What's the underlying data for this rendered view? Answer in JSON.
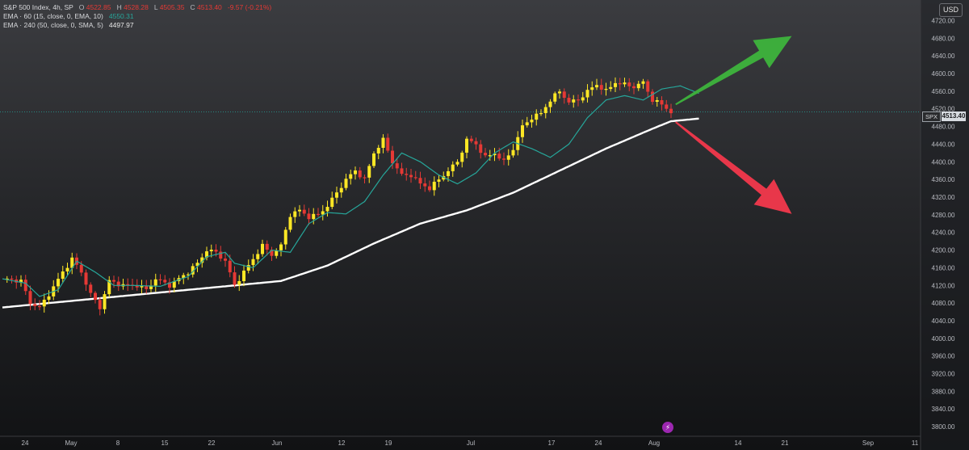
{
  "legend": {
    "title": "S&P 500 Index, 4h, SP",
    "ohlc": [
      {
        "k": "O",
        "v": "4522.85"
      },
      {
        "k": "H",
        "v": "4528.28"
      },
      {
        "k": "L",
        "v": "4505.35"
      },
      {
        "k": "C",
        "v": "4513.40"
      }
    ],
    "change": "-9.57 (-0.21%)",
    "ema1_label": "EMA · 60 (15, close, 0, EMA, 10)",
    "ema1_value": "4550.31",
    "ema2_label": "EMA · 240 (50, close, 0, SMA, 5)",
    "ema2_value": "4497.97"
  },
  "currency_button": "USD",
  "symbol_tag": "SPX",
  "last_price_label": "4513.40",
  "colors": {
    "bull": "#fde725",
    "bear": "#e53935",
    "ema_fast": "#26a69a",
    "ema_slow": "#ffffff",
    "arrow_up": "#3dad3c",
    "arrow_down": "#e8374a",
    "price_line": "#26a69a"
  },
  "icons": {
    "currency": "usd-button",
    "event": "lightning-icon"
  },
  "chart_data": {
    "type": "candlestick",
    "title": "S&P 500 Index, 4h, SP",
    "y_axis": {
      "ticks": [
        3800,
        3840,
        3880,
        3920,
        3960,
        4000,
        4040,
        4080,
        4120,
        4160,
        4200,
        4240,
        4280,
        4320,
        4360,
        4400,
        4440,
        4480,
        4520,
        4560,
        4600,
        4640,
        4680,
        4720
      ],
      "tick_labels": [
        "3800.00",
        "3840.00",
        "3880.00",
        "3920.00",
        "3960.00",
        "4000.00",
        "4040.00",
        "4080.00",
        "4120.00",
        "4160.00",
        "4200.00",
        "4240.00",
        "4280.00",
        "4320.00",
        "4360.00",
        "4400.00",
        "4440.00",
        "4480.00",
        "4520.00",
        "4560.00",
        "4600.00",
        "4640.00",
        "4680.00",
        "4720.00"
      ],
      "range": [
        3780,
        4752
      ]
    },
    "x_axis": {
      "labels": [
        "24",
        "May",
        "8",
        "15",
        "22",
        "Jun",
        "12",
        "19",
        "Jul",
        "17",
        "24",
        "Aug",
        "14",
        "21",
        "Sep",
        "11"
      ]
    },
    "last_price": 4513.4,
    "ema_fast_anchors": [
      [
        0,
        4135
      ],
      [
        5,
        4125
      ],
      [
        8,
        4095
      ],
      [
        12,
        4110
      ],
      [
        16,
        4175
      ],
      [
        20,
        4150
      ],
      [
        24,
        4120
      ],
      [
        28,
        4120
      ],
      [
        34,
        4118
      ],
      [
        40,
        4140
      ],
      [
        44,
        4185
      ],
      [
        48,
        4195
      ],
      [
        50,
        4170
      ],
      [
        54,
        4160
      ],
      [
        58,
        4200
      ],
      [
        62,
        4195
      ],
      [
        66,
        4260
      ],
      [
        70,
        4285
      ],
      [
        74,
        4282
      ],
      [
        78,
        4310
      ],
      [
        82,
        4370
      ],
      [
        86,
        4420
      ],
      [
        90,
        4400
      ],
      [
        94,
        4370
      ],
      [
        98,
        4350
      ],
      [
        102,
        4375
      ],
      [
        106,
        4420
      ],
      [
        110,
        4445
      ],
      [
        114,
        4430
      ],
      [
        118,
        4410
      ],
      [
        122,
        4440
      ],
      [
        126,
        4500
      ],
      [
        130,
        4540
      ],
      [
        134,
        4550
      ],
      [
        138,
        4540
      ],
      [
        142,
        4565
      ],
      [
        146,
        4572
      ],
      [
        150,
        4555
      ]
    ],
    "ema_slow_anchors": [
      [
        0,
        4070
      ],
      [
        20,
        4090
      ],
      [
        40,
        4110
      ],
      [
        60,
        4130
      ],
      [
        70,
        4165
      ],
      [
        80,
        4215
      ],
      [
        90,
        4260
      ],
      [
        100,
        4290
      ],
      [
        110,
        4330
      ],
      [
        120,
        4380
      ],
      [
        130,
        4430
      ],
      [
        140,
        4475
      ],
      [
        144,
        4492
      ],
      [
        150,
        4498
      ]
    ],
    "candle_path": [
      [
        0,
        4135
      ],
      [
        4,
        4130
      ],
      [
        6,
        4080
      ],
      [
        8,
        4070
      ],
      [
        10,
        4100
      ],
      [
        13,
        4150
      ],
      [
        15,
        4180
      ],
      [
        17,
        4150
      ],
      [
        19,
        4100
      ],
      [
        21,
        4070
      ],
      [
        23,
        4130
      ],
      [
        26,
        4120
      ],
      [
        29,
        4120
      ],
      [
        31,
        4110
      ],
      [
        33,
        4135
      ],
      [
        36,
        4120
      ],
      [
        38,
        4135
      ],
      [
        40,
        4150
      ],
      [
        42,
        4170
      ],
      [
        44,
        4200
      ],
      [
        46,
        4195
      ],
      [
        48,
        4175
      ],
      [
        50,
        4120
      ],
      [
        52,
        4150
      ],
      [
        54,
        4180
      ],
      [
        56,
        4210
      ],
      [
        58,
        4190
      ],
      [
        60,
        4210
      ],
      [
        62,
        4280
      ],
      [
        64,
        4290
      ],
      [
        66,
        4275
      ],
      [
        68,
        4280
      ],
      [
        70,
        4300
      ],
      [
        72,
        4330
      ],
      [
        74,
        4360
      ],
      [
        76,
        4380
      ],
      [
        78,
        4360
      ],
      [
        80,
        4420
      ],
      [
        82,
        4450
      ],
      [
        84,
        4400
      ],
      [
        86,
        4370
      ],
      [
        88,
        4370
      ],
      [
        90,
        4350
      ],
      [
        92,
        4340
      ],
      [
        94,
        4360
      ],
      [
        96,
        4380
      ],
      [
        98,
        4400
      ],
      [
        100,
        4450
      ],
      [
        102,
        4440
      ],
      [
        104,
        4410
      ],
      [
        106,
        4420
      ],
      [
        108,
        4400
      ],
      [
        110,
        4430
      ],
      [
        112,
        4480
      ],
      [
        114,
        4500
      ],
      [
        116,
        4510
      ],
      [
        118,
        4540
      ],
      [
        120,
        4560
      ],
      [
        122,
        4535
      ],
      [
        124,
        4540
      ],
      [
        126,
        4560
      ],
      [
        128,
        4575
      ],
      [
        130,
        4560
      ],
      [
        132,
        4580
      ],
      [
        134,
        4575
      ],
      [
        136,
        4570
      ],
      [
        138,
        4580
      ],
      [
        140,
        4540
      ],
      [
        142,
        4530
      ],
      [
        144,
        4513
      ]
    ],
    "arrows": [
      {
        "direction": "up",
        "from": [
          145,
          4530
        ],
        "to": [
          170,
          4685
        ]
      },
      {
        "direction": "down",
        "from": [
          145,
          4490
        ],
        "to": [
          170,
          4282
        ]
      }
    ]
  }
}
